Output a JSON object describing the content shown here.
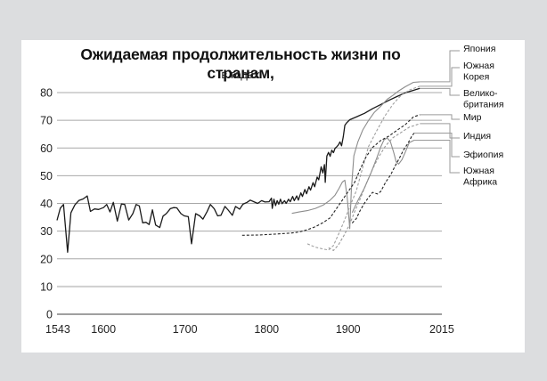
{
  "title": "Ожидаемая продолжительность жизни по странам,",
  "subtitle": "в годах",
  "colors": {
    "background": "#dcdddf",
    "panel": "#ffffff",
    "gridline": "#a8a8a8",
    "axis_zero": "#a8a8a8"
  },
  "chart_data": {
    "type": "line",
    "title": "Ожидаемая продолжительность жизни по странам, в годах",
    "xlabel": "",
    "ylabel": "",
    "xlim": [
      1543,
      2015
    ],
    "ylim": [
      0,
      80
    ],
    "x_ticks": [
      1543,
      1600,
      1700,
      1800,
      1900,
      2015
    ],
    "y_ticks": [
      0,
      10,
      20,
      30,
      40,
      50,
      60,
      70,
      80
    ],
    "grid": true,
    "legend_position": "right",
    "series": [
      {
        "name": "Великобритания",
        "color": "#1a1a1a",
        "style": "solid",
        "points": [
          [
            1543,
            33.9
          ],
          [
            1547,
            38.3
          ],
          [
            1551,
            39.6
          ],
          [
            1556,
            22.4
          ],
          [
            1560,
            36.6
          ],
          [
            1565,
            39.5
          ],
          [
            1570,
            41.1
          ],
          [
            1575,
            41.6
          ],
          [
            1580,
            42.7
          ],
          [
            1584,
            37.1
          ],
          [
            1589,
            38.0
          ],
          [
            1594,
            37.8
          ],
          [
            1600,
            38.5
          ],
          [
            1604,
            39.6
          ],
          [
            1608,
            36.9
          ],
          [
            1612,
            40.4
          ],
          [
            1617,
            33.6
          ],
          [
            1622,
            39.8
          ],
          [
            1626,
            39.6
          ],
          [
            1631,
            34.0
          ],
          [
            1636,
            36.3
          ],
          [
            1640,
            39.6
          ],
          [
            1644,
            39.1
          ],
          [
            1648,
            33.0
          ],
          [
            1652,
            33.2
          ],
          [
            1656,
            32.4
          ],
          [
            1660,
            37.7
          ],
          [
            1664,
            32.2
          ],
          [
            1669,
            31.3
          ],
          [
            1673,
            35.4
          ],
          [
            1677,
            36.3
          ],
          [
            1682,
            38.1
          ],
          [
            1686,
            38.5
          ],
          [
            1690,
            38.4
          ],
          [
            1695,
            36.3
          ],
          [
            1699,
            35.5
          ],
          [
            1704,
            35.2
          ],
          [
            1708,
            25.4
          ],
          [
            1713,
            36.3
          ],
          [
            1718,
            35.5
          ],
          [
            1722,
            34.3
          ],
          [
            1727,
            37.0
          ],
          [
            1731,
            39.6
          ],
          [
            1736,
            38.0
          ],
          [
            1740,
            35.5
          ],
          [
            1744,
            35.7
          ],
          [
            1749,
            38.9
          ],
          [
            1753,
            37.6
          ],
          [
            1758,
            35.7
          ],
          [
            1762,
            38.9
          ],
          [
            1767,
            37.9
          ],
          [
            1771,
            39.7
          ],
          [
            1776,
            40.4
          ],
          [
            1780,
            41.2
          ],
          [
            1785,
            40.5
          ],
          [
            1789,
            40.0
          ],
          [
            1794,
            41.0
          ],
          [
            1798,
            40.5
          ],
          [
            1803,
            40.6
          ],
          [
            1806,
            41.9
          ],
          [
            1807,
            38.2
          ],
          [
            1809,
            41.5
          ],
          [
            1811,
            39.2
          ],
          [
            1813,
            41.0
          ],
          [
            1815,
            39.7
          ],
          [
            1817,
            41.5
          ],
          [
            1819,
            39.9
          ],
          [
            1822,
            41.0
          ],
          [
            1824,
            40.0
          ],
          [
            1827,
            41.5
          ],
          [
            1829,
            40.6
          ],
          [
            1832,
            42.5
          ],
          [
            1834,
            41.0
          ],
          [
            1837,
            42.7
          ],
          [
            1839,
            41.2
          ],
          [
            1842,
            43.8
          ],
          [
            1844,
            42.5
          ],
          [
            1847,
            45.0
          ],
          [
            1849,
            43.5
          ],
          [
            1852,
            46.0
          ],
          [
            1854,
            44.8
          ],
          [
            1857,
            47.5
          ],
          [
            1859,
            46.0
          ],
          [
            1862,
            49.5
          ],
          [
            1864,
            48.5
          ],
          [
            1867,
            53.2
          ],
          [
            1869,
            51.0
          ],
          [
            1871,
            54.0
          ],
          [
            1872,
            47.6
          ],
          [
            1874,
            57.1
          ],
          [
            1876,
            58.4
          ],
          [
            1878,
            57.0
          ],
          [
            1880,
            59.2
          ],
          [
            1882,
            58.3
          ],
          [
            1884,
            59.9
          ],
          [
            1886,
            60.4
          ],
          [
            1888,
            61.1
          ],
          [
            1890,
            62.2
          ],
          [
            1892,
            60.8
          ],
          [
            1894,
            64.0
          ],
          [
            1896,
            68.2
          ],
          [
            1898,
            69.0
          ],
          [
            1902,
            70.2
          ],
          [
            1910,
            71.2
          ],
          [
            1920,
            72.5
          ],
          [
            1930,
            74.2
          ],
          [
            1940,
            75.7
          ],
          [
            1950,
            77.2
          ],
          [
            1960,
            78.6
          ],
          [
            1970,
            79.9
          ],
          [
            1980,
            80.8
          ],
          [
            1988,
            81.5
          ]
        ]
      },
      {
        "name": "Япония",
        "color": "#8c8c8c",
        "style": "solid",
        "points": [
          [
            1831,
            36.4
          ],
          [
            1840,
            36.9
          ],
          [
            1850,
            37.4
          ],
          [
            1860,
            38.2
          ],
          [
            1870,
            39.5
          ],
          [
            1878,
            41.2
          ],
          [
            1884,
            43.0
          ],
          [
            1889,
            45.5
          ],
          [
            1893,
            47.7
          ],
          [
            1896,
            48.4
          ],
          [
            1899,
            42.0
          ],
          [
            1902,
            30.9
          ],
          [
            1904,
            45.0
          ],
          [
            1907,
            57.2
          ],
          [
            1912,
            62.2
          ],
          [
            1918,
            66.5
          ],
          [
            1925,
            69.9
          ],
          [
            1932,
            72.8
          ],
          [
            1940,
            75.1
          ],
          [
            1948,
            77.6
          ],
          [
            1955,
            79.0
          ],
          [
            1962,
            80.6
          ],
          [
            1970,
            82.1
          ],
          [
            1980,
            83.7
          ],
          [
            1988,
            83.9
          ]
        ]
      },
      {
        "name": "Южная Корея",
        "color": "#a0a0a0",
        "style": "dashed",
        "points": [
          [
            1850,
            25.4
          ],
          [
            1860,
            24.2
          ],
          [
            1870,
            23.5
          ],
          [
            1876,
            23.2
          ],
          [
            1882,
            24.8
          ],
          [
            1890,
            30.0
          ],
          [
            1897,
            35.0
          ],
          [
            1903,
            39.5
          ],
          [
            1910,
            44.5
          ],
          [
            1918,
            53.0
          ],
          [
            1925,
            60.5
          ],
          [
            1935,
            66.2
          ],
          [
            1945,
            71.5
          ],
          [
            1955,
            75.8
          ],
          [
            1965,
            79.0
          ],
          [
            1975,
            80.9
          ],
          [
            1988,
            82.3
          ]
        ]
      },
      {
        "name": "Мир",
        "color": "#222222",
        "style": "dashed",
        "points": [
          [
            1770,
            28.5
          ],
          [
            1790,
            28.6
          ],
          [
            1810,
            28.9
          ],
          [
            1830,
            29.3
          ],
          [
            1840,
            29.7
          ],
          [
            1850,
            30.5
          ],
          [
            1860,
            31.6
          ],
          [
            1870,
            33.2
          ],
          [
            1878,
            34.8
          ],
          [
            1885,
            37.8
          ],
          [
            1893,
            41.2
          ],
          [
            1900,
            44.2
          ],
          [
            1908,
            47.6
          ],
          [
            1915,
            52.5
          ],
          [
            1922,
            56.8
          ],
          [
            1930,
            60.2
          ],
          [
            1940,
            62.7
          ],
          [
            1950,
            64.3
          ],
          [
            1960,
            66.4
          ],
          [
            1970,
            68.4
          ],
          [
            1980,
            71.2
          ],
          [
            1988,
            72.0
          ]
        ]
      },
      {
        "name": "Индия",
        "color": "#9a9a9a",
        "style": "dashed",
        "points": [
          [
            1876,
            24.0
          ],
          [
            1882,
            23.0
          ],
          [
            1888,
            25.0
          ],
          [
            1895,
            28.5
          ],
          [
            1902,
            32.5
          ],
          [
            1908,
            37.0
          ],
          [
            1915,
            41.8
          ],
          [
            1922,
            47.0
          ],
          [
            1930,
            52.4
          ],
          [
            1938,
            57.0
          ],
          [
            1946,
            60.8
          ],
          [
            1955,
            63.7
          ],
          [
            1965,
            65.6
          ],
          [
            1975,
            67.5
          ],
          [
            1988,
            68.8
          ]
        ]
      },
      {
        "name": "Эфиопия",
        "color": "#222222",
        "style": "dashed",
        "points": [
          [
            1905,
            32.9
          ],
          [
            1910,
            34.5
          ],
          [
            1915,
            37.6
          ],
          [
            1920,
            40.1
          ],
          [
            1926,
            42.5
          ],
          [
            1930,
            44.0
          ],
          [
            1936,
            43.4
          ],
          [
            1940,
            44.3
          ],
          [
            1946,
            47.6
          ],
          [
            1952,
            50.2
          ],
          [
            1958,
            53.7
          ],
          [
            1963,
            56.4
          ],
          [
            1968,
            59.3
          ],
          [
            1973,
            61.5
          ],
          [
            1978,
            64.2
          ],
          [
            1981,
            65.4
          ]
        ]
      },
      {
        "name": "Южная Африка",
        "color": "#8c8c8c",
        "style": "solid",
        "points": [
          [
            1905,
            36.7
          ],
          [
            1912,
            41.0
          ],
          [
            1920,
            45.6
          ],
          [
            1928,
            51.0
          ],
          [
            1935,
            56.3
          ],
          [
            1940,
            60.4
          ],
          [
            1944,
            62.9
          ],
          [
            1948,
            63.6
          ],
          [
            1952,
            62.2
          ],
          [
            1956,
            58.3
          ],
          [
            1959,
            55.0
          ],
          [
            1962,
            54.2
          ],
          [
            1966,
            55.8
          ],
          [
            1970,
            58.4
          ],
          [
            1975,
            61.9
          ],
          [
            1981,
            62.8
          ]
        ]
      }
    ]
  },
  "legend": [
    {
      "label": [
        "Япония"
      ],
      "series": "Япония"
    },
    {
      "label": [
        "Южная",
        "Корея"
      ],
      "series": "Южная Корея"
    },
    {
      "label": [
        "Велико-",
        "британия"
      ],
      "series": "Великобритания"
    },
    {
      "label": [
        "Мир"
      ],
      "series": "Мир"
    },
    {
      "label": [
        "Индия"
      ],
      "series": "Индия"
    },
    {
      "label": [
        "Эфиопия"
      ],
      "series": "Эфиопия"
    },
    {
      "label": [
        "Южная",
        "Африка"
      ],
      "series": "Южная Африка"
    }
  ]
}
